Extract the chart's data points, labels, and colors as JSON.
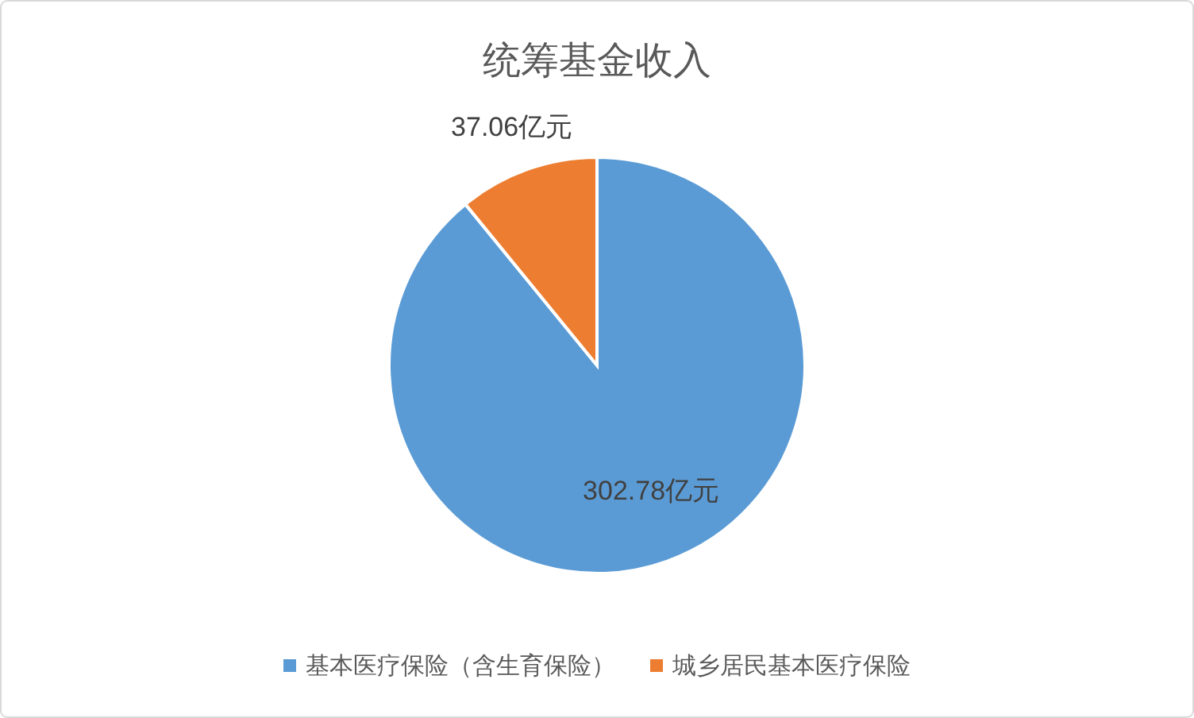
{
  "chart_data": {
    "type": "pie",
    "title": "统筹基金收入",
    "categories": [
      "基本医疗保险（含生育保险）",
      "城乡居民基本医疗保险"
    ],
    "values": [
      302.78,
      37.06
    ],
    "colors": [
      "#5b9bd5",
      "#ed7d31"
    ],
    "value_labels": [
      "302.78亿元",
      "37.06亿元"
    ],
    "legend": "bottom"
  }
}
